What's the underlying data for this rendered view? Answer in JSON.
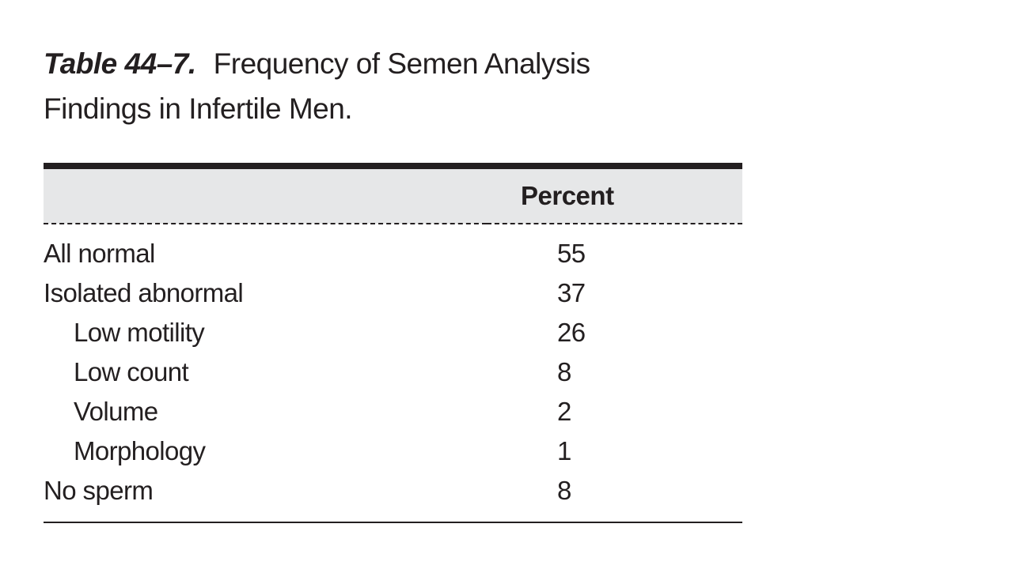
{
  "table": {
    "caption_label": "Table 44–7.",
    "caption_title_line1": "Frequency of Semen Analysis",
    "caption_title_line2": "Findings in Infertile Men.",
    "header": {
      "label": "",
      "value": "Percent"
    },
    "rows": [
      {
        "label": "All normal",
        "value": "55",
        "indent": false
      },
      {
        "label": "Isolated abnormal",
        "value": "37",
        "indent": false
      },
      {
        "label": "Low motility",
        "value": "26",
        "indent": true
      },
      {
        "label": "Low count",
        "value": "8",
        "indent": true
      },
      {
        "label": "Volume",
        "value": "2",
        "indent": true
      },
      {
        "label": "Morphology",
        "value": "1",
        "indent": true
      },
      {
        "label": "No sperm",
        "value": "8",
        "indent": false
      }
    ]
  }
}
